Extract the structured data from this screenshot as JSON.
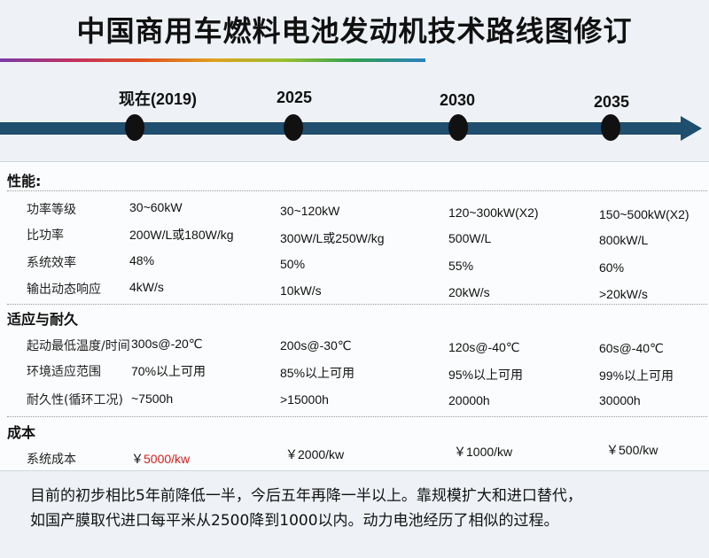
{
  "title": "中国商用车燃料电池发动机技术路线图修订",
  "timeline": {
    "years": [
      "现在(2019)",
      "2025",
      "2030",
      "2035"
    ]
  },
  "sections": {
    "performance": "性能:",
    "durability": "适应与耐久",
    "cost": "成本"
  },
  "rows": {
    "power_level": {
      "label": "功率等级",
      "values": [
        "30~60kW",
        "30~120kW",
        "120~300kW(X2)",
        "150~500kW(X2)"
      ]
    },
    "specific_power": {
      "label": "比功率",
      "values": [
        "200W/L或180W/kg",
        "300W/L或250W/kg",
        "500W/L",
        "800kW/L"
      ]
    },
    "system_efficiency": {
      "label": "系统效率",
      "values": [
        "48%",
        "50%",
        "55%",
        "60%"
      ]
    },
    "dynamic_response": {
      "label": "输出动态响应",
      "values": [
        "4kW/s",
        "10kW/s",
        "20kW/s",
        ">20kW/s"
      ]
    },
    "cold_start": {
      "label": "起动最低温度/时间",
      "values": [
        "300s@-20℃",
        "200s@-30℃",
        "120s@-40℃",
        "60s@-40℃"
      ]
    },
    "env_adaptability": {
      "label": "环境适应范围",
      "values": [
        "70%以上可用",
        "85%以上可用",
        "95%以上可用",
        "99%以上可用"
      ]
    },
    "durability": {
      "label": "耐久性(循环工况)",
      "values": [
        "~7500h",
        ">15000h",
        "20000h",
        "30000h"
      ]
    },
    "system_cost": {
      "label": "系统成本",
      "currency": "￥",
      "values": [
        "5000/kw",
        "2000/kw",
        "1000/kw",
        "500/kw"
      ]
    }
  },
  "notes": [
    "目前的初步相比5年前降低一半，今后五年再降一半以上。靠规模扩大和进口替代，",
    "如国产膜取代进口每平米从2500降到1000以内。动力电池经历了相似的过程。"
  ],
  "colors": {
    "timeline": "#1f4e6e",
    "highlight": "#d42020"
  }
}
